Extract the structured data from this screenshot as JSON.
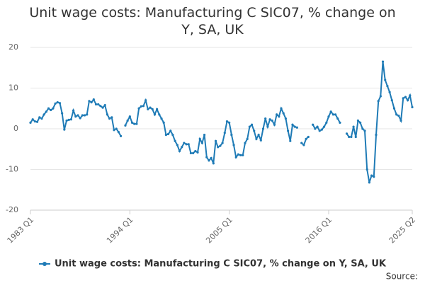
{
  "chart_data": {
    "type": "line",
    "title": "Unit wage costs: Manufacturing C SIC07, % change on Y, SA, UK",
    "categories": [
      "1983 Q1",
      null,
      null,
      null,
      null,
      null,
      null,
      null,
      null,
      null,
      null,
      null,
      null,
      null,
      null,
      null,
      null,
      null,
      null,
      null,
      null,
      null,
      null,
      null,
      null,
      null,
      null,
      null,
      null,
      null,
      null,
      null,
      null,
      null,
      null,
      null,
      null,
      null,
      null,
      null,
      null,
      null,
      null,
      null,
      "1994 Q1",
      null,
      null,
      null,
      null,
      null,
      null,
      null,
      null,
      null,
      null,
      null,
      null,
      null,
      null,
      null,
      null,
      null,
      null,
      null,
      null,
      null,
      null,
      null,
      null,
      null,
      null,
      null,
      null,
      null,
      null,
      null,
      null,
      null,
      null,
      null,
      null,
      null,
      null,
      null,
      null,
      null,
      null,
      null,
      "2005 Q1",
      null,
      null,
      null,
      null,
      null,
      null,
      null,
      null,
      null,
      null,
      null,
      null,
      null,
      null,
      null,
      null,
      null,
      null,
      null,
      null,
      null,
      null,
      null,
      null,
      null,
      null,
      null,
      null,
      null,
      null,
      null,
      null,
      null,
      null,
      null,
      null,
      null,
      null,
      null,
      null,
      null,
      null,
      null,
      "2016 Q1",
      null,
      null,
      null,
      null,
      null,
      null,
      null,
      null,
      null,
      null,
      null,
      null,
      null,
      null,
      null,
      null,
      null,
      null,
      null,
      null,
      null,
      null,
      null,
      null,
      null,
      null,
      null,
      null,
      null,
      null,
      null,
      null,
      null,
      null,
      null,
      null,
      "2025 Q2"
    ],
    "series": [
      {
        "name": "Unit wage costs: Manufacturing C SIC07, % change on Y, SA, UK",
        "color": "#1f7bb6",
        "values": [
          1.5,
          2.3,
          1.8,
          1.7,
          2.8,
          2.5,
          3.5,
          4.2,
          5.0,
          4.6,
          5.0,
          6.2,
          6.5,
          6.3,
          3.8,
          -0.2,
          2.0,
          2.2,
          2.3,
          4.5,
          3.0,
          3.3,
          2.6,
          3.3,
          3.3,
          3.5,
          6.8,
          6.5,
          7.2,
          6.0,
          6.0,
          5.6,
          5.2,
          5.8,
          3.5,
          2.5,
          2.8,
          -0.3,
          0,
          -0.8,
          -1.8,
          null,
          0.8,
          2.0,
          3.0,
          1.5,
          1.2,
          1.2,
          5.0,
          5.5,
          5.6,
          7.0,
          4.8,
          5.2,
          4.8,
          3.5,
          4.8,
          3.5,
          2.5,
          1.5,
          -1.5,
          -1.3,
          -0.5,
          -1.5,
          -3.0,
          -4.0,
          -5.5,
          -4.5,
          -3.5,
          -3.8,
          -3.8,
          -6.0,
          -6.0,
          -5.5,
          -5.8,
          -2.5,
          -3.5,
          -1.5,
          -7.0,
          -7.8,
          -7.2,
          -8.5,
          -3.0,
          -4.5,
          -4.2,
          -3.5,
          -1.0,
          1.8,
          1.5,
          -1.5,
          -4.0,
          -7.0,
          -6.3,
          -6.5,
          -6.5,
          -3.5,
          -2.5,
          0.5,
          1.0,
          -0.5,
          -2.5,
          -1.5,
          -2.8,
          0,
          2.5,
          0.5,
          2.3,
          2.0,
          1.0,
          3.5,
          3.0,
          5.0,
          3.8,
          2.5,
          -0.5,
          -3.0,
          1.0,
          0.5,
          0.3,
          null,
          -3.5,
          -4.0,
          -2.5,
          -2.0,
          null,
          1.0,
          0,
          0.5,
          -0.5,
          -0.2,
          0.5,
          1.5,
          3.0,
          4.2,
          3.5,
          3.5,
          2.5,
          1.5,
          null,
          null,
          -1.2,
          -2.0,
          -2.0,
          0.5,
          -2.0,
          2.0,
          1.5,
          0,
          -0.5,
          -10.0,
          -13.2,
          -11.5,
          -11.8,
          -1.5,
          6.8,
          8.0,
          16.5,
          12.0,
          10.5,
          9.0,
          7.0,
          5.0,
          3.5,
          3.2,
          2.0,
          7.5,
          7.8,
          7.0,
          8.2,
          5.3
        ]
      }
    ],
    "ylim": [
      -20,
      20
    ],
    "yticks": [
      -20,
      -10,
      0,
      10,
      20
    ],
    "grid": true,
    "legend": "bottom",
    "source": "Source:"
  }
}
